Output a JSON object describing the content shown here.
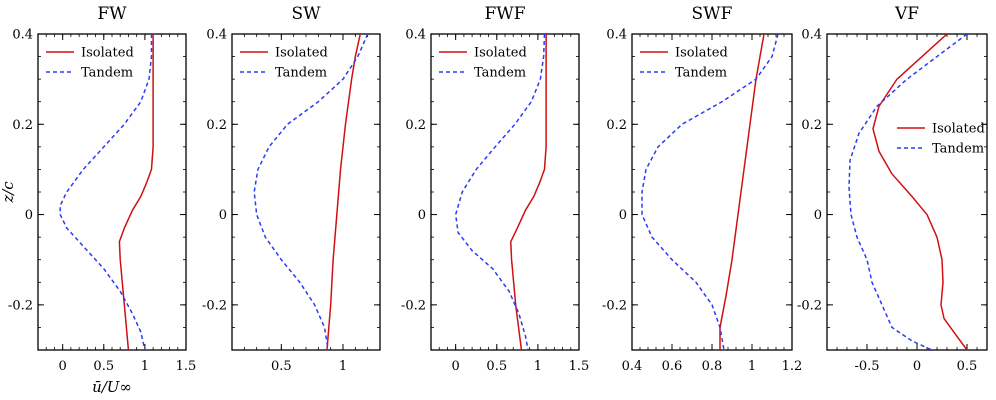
{
  "figure": {
    "ylabel": "z/c",
    "xlabel": "ū/U∞",
    "ylim": [
      -0.3,
      0.4
    ],
    "yticks": [
      -0.2,
      0,
      0.2,
      0.4
    ],
    "ytick_labels": [
      "-0.2",
      "0",
      "0.2",
      "0.4"
    ],
    "legend_labels": [
      "Isolated",
      "Tandem"
    ],
    "colors": {
      "isolated": "#d01010",
      "tandem": "#2a3cf5",
      "axis": "#000000"
    }
  },
  "chart_data": [
    {
      "type": "line",
      "title": "FW",
      "xlim": [
        -0.3,
        1.5
      ],
      "xticks": [
        0,
        0.5,
        1,
        1.5
      ],
      "xtick_labels": [
        "0",
        "0.5",
        "1",
        "1.5"
      ],
      "legend_position": "top-left",
      "series": [
        {
          "name": "Isolated",
          "style": "solid",
          "points": [
            [
              1.1,
              0.4
            ],
            [
              1.1,
              0.3
            ],
            [
              1.1,
              0.2
            ],
            [
              1.1,
              0.15
            ],
            [
              1.08,
              0.1
            ],
            [
              1.02,
              0.07
            ],
            [
              0.95,
              0.04
            ],
            [
              0.85,
              0.01
            ],
            [
              0.75,
              -0.03
            ],
            [
              0.69,
              -0.06
            ],
            [
              0.7,
              -0.1
            ],
            [
              0.75,
              -0.2
            ],
            [
              0.8,
              -0.3
            ]
          ]
        },
        {
          "name": "Tandem",
          "style": "dashed",
          "points": [
            [
              1.08,
              0.4
            ],
            [
              1.08,
              0.35
            ],
            [
              1.05,
              0.3
            ],
            [
              0.95,
              0.25
            ],
            [
              0.75,
              0.2
            ],
            [
              0.5,
              0.15
            ],
            [
              0.25,
              0.1
            ],
            [
              0.05,
              0.05
            ],
            [
              -0.03,
              0.02
            ],
            [
              -0.03,
              0
            ],
            [
              0.05,
              -0.03
            ],
            [
              0.25,
              -0.07
            ],
            [
              0.5,
              -0.12
            ],
            [
              0.7,
              -0.17
            ],
            [
              0.85,
              -0.22
            ],
            [
              0.95,
              -0.26
            ],
            [
              1.0,
              -0.3
            ]
          ]
        }
      ]
    },
    {
      "type": "line",
      "title": "SW",
      "xlim": [
        0.1,
        1.3
      ],
      "xticks": [
        0.5,
        1
      ],
      "xtick_labels": [
        "0.5",
        "1"
      ],
      "legend_position": "top-left",
      "series": [
        {
          "name": "Isolated",
          "style": "solid",
          "points": [
            [
              1.14,
              0.4
            ],
            [
              1.1,
              0.35
            ],
            [
              1.07,
              0.3
            ],
            [
              1.02,
              0.2
            ],
            [
              0.98,
              0.1
            ],
            [
              0.95,
              0
            ],
            [
              0.92,
              -0.1
            ],
            [
              0.9,
              -0.2
            ],
            [
              0.87,
              -0.3
            ]
          ]
        },
        {
          "name": "Tandem",
          "style": "dashed",
          "points": [
            [
              1.2,
              0.4
            ],
            [
              1.12,
              0.35
            ],
            [
              1.0,
              0.3
            ],
            [
              0.8,
              0.25
            ],
            [
              0.55,
              0.2
            ],
            [
              0.4,
              0.15
            ],
            [
              0.31,
              0.1
            ],
            [
              0.28,
              0.05
            ],
            [
              0.3,
              0
            ],
            [
              0.37,
              -0.05
            ],
            [
              0.5,
              -0.1
            ],
            [
              0.65,
              -0.15
            ],
            [
              0.77,
              -0.2
            ],
            [
              0.85,
              -0.25
            ],
            [
              0.88,
              -0.3
            ]
          ]
        }
      ]
    },
    {
      "type": "line",
      "title": "FWF",
      "xlim": [
        -0.3,
        1.5
      ],
      "xticks": [
        0,
        0.5,
        1,
        1.5
      ],
      "xtick_labels": [
        "0",
        "0.5",
        "1",
        "1.5"
      ],
      "legend_position": "top-left",
      "series": [
        {
          "name": "Isolated",
          "style": "solid",
          "points": [
            [
              1.1,
              0.4
            ],
            [
              1.1,
              0.3
            ],
            [
              1.1,
              0.2
            ],
            [
              1.1,
              0.15
            ],
            [
              1.08,
              0.1
            ],
            [
              1.02,
              0.07
            ],
            [
              0.95,
              0.04
            ],
            [
              0.85,
              0.01
            ],
            [
              0.75,
              -0.03
            ],
            [
              0.67,
              -0.06
            ],
            [
              0.68,
              -0.1
            ],
            [
              0.73,
              -0.2
            ],
            [
              0.8,
              -0.3
            ]
          ]
        },
        {
          "name": "Tandem",
          "style": "dashed",
          "points": [
            [
              1.08,
              0.4
            ],
            [
              1.07,
              0.35
            ],
            [
              1.03,
              0.3
            ],
            [
              0.92,
              0.25
            ],
            [
              0.72,
              0.2
            ],
            [
              0.48,
              0.15
            ],
            [
              0.25,
              0.1
            ],
            [
              0.08,
              0.05
            ],
            [
              0.0,
              0.0
            ],
            [
              0.03,
              -0.04
            ],
            [
              0.2,
              -0.08
            ],
            [
              0.45,
              -0.12
            ],
            [
              0.65,
              -0.17
            ],
            [
              0.77,
              -0.22
            ],
            [
              0.85,
              -0.27
            ],
            [
              0.88,
              -0.3
            ]
          ]
        }
      ]
    },
    {
      "type": "line",
      "title": "SWF",
      "xlim": [
        0.4,
        1.2
      ],
      "xticks": [
        0.4,
        0.6,
        0.8,
        1,
        1.2
      ],
      "xtick_labels": [
        "0.4",
        "0.6",
        "0.8",
        "1",
        "1.2"
      ],
      "legend_position": "top-left",
      "series": [
        {
          "name": "Isolated",
          "style": "solid",
          "points": [
            [
              1.06,
              0.4
            ],
            [
              1.04,
              0.35
            ],
            [
              1.02,
              0.3
            ],
            [
              0.99,
              0.2
            ],
            [
              0.96,
              0.1
            ],
            [
              0.93,
              0
            ],
            [
              0.9,
              -0.1
            ],
            [
              0.87,
              -0.18
            ],
            [
              0.84,
              -0.25
            ],
            [
              0.84,
              -0.3
            ]
          ]
        },
        {
          "name": "Tandem",
          "style": "dashed",
          "points": [
            [
              1.13,
              0.4
            ],
            [
              1.1,
              0.35
            ],
            [
              1.02,
              0.3
            ],
            [
              0.85,
              0.25
            ],
            [
              0.65,
              0.2
            ],
            [
              0.53,
              0.15
            ],
            [
              0.47,
              0.1
            ],
            [
              0.45,
              0.05
            ],
            [
              0.45,
              0
            ],
            [
              0.5,
              -0.05
            ],
            [
              0.6,
              -0.1
            ],
            [
              0.72,
              -0.15
            ],
            [
              0.8,
              -0.2
            ],
            [
              0.84,
              -0.25
            ],
            [
              0.86,
              -0.3
            ]
          ]
        }
      ]
    },
    {
      "type": "line",
      "title": "VF",
      "xlim": [
        -0.9,
        0.7
      ],
      "xticks": [
        -0.5,
        0,
        0.5
      ],
      "xtick_labels": [
        "-0.5",
        "0",
        "0.5"
      ],
      "legend_position": "top-right",
      "series": [
        {
          "name": "Isolated",
          "style": "solid",
          "points": [
            [
              0.3,
              0.4
            ],
            [
              0.05,
              0.35
            ],
            [
              -0.2,
              0.3
            ],
            [
              -0.38,
              0.24
            ],
            [
              -0.44,
              0.19
            ],
            [
              -0.38,
              0.14
            ],
            [
              -0.25,
              0.09
            ],
            [
              -0.05,
              0.04
            ],
            [
              0.1,
              0.0
            ],
            [
              0.2,
              -0.05
            ],
            [
              0.25,
              -0.1
            ],
            [
              0.26,
              -0.15
            ],
            [
              0.24,
              -0.2
            ],
            [
              0.27,
              -0.23
            ],
            [
              0.4,
              -0.27
            ],
            [
              0.5,
              -0.3
            ]
          ]
        },
        {
          "name": "Tandem",
          "style": "dashed",
          "points": [
            [
              0.5,
              0.4
            ],
            [
              0.2,
              0.35
            ],
            [
              -0.1,
              0.3
            ],
            [
              -0.4,
              0.24
            ],
            [
              -0.58,
              0.18
            ],
            [
              -0.67,
              0.12
            ],
            [
              -0.68,
              0.06
            ],
            [
              -0.66,
              0.0
            ],
            [
              -0.6,
              -0.05
            ],
            [
              -0.5,
              -0.1
            ],
            [
              -0.45,
              -0.15
            ],
            [
              -0.35,
              -0.2
            ],
            [
              -0.25,
              -0.25
            ],
            [
              -0.05,
              -0.28
            ],
            [
              0.15,
              -0.3
            ]
          ]
        }
      ]
    }
  ]
}
